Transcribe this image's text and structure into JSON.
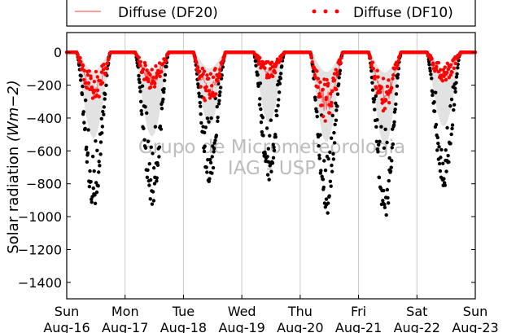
{
  "chart_data": {
    "type": "scatter",
    "title": "",
    "ylabel_text": "Solar radiation ",
    "ylabel_unit": "(Wm−2)",
    "xlabel": "",
    "ylim": [
      -1500,
      120
    ],
    "xlim": [
      0,
      7
    ],
    "yticks": [
      0,
      -200,
      -400,
      -600,
      -800,
      -1000,
      -1200,
      -1400
    ],
    "xticks": [
      {
        "day": "Sun",
        "date": "Aug-16",
        "x": 0
      },
      {
        "day": "Mon",
        "date": "Aug-17",
        "x": 1
      },
      {
        "day": "Tue",
        "date": "Aug-18",
        "x": 2
      },
      {
        "day": "Wed",
        "date": "Aug-19",
        "x": 3
      },
      {
        "day": "Thu",
        "date": "Aug-20",
        "x": 4
      },
      {
        "day": "Fri",
        "date": "Aug-21",
        "x": 5
      },
      {
        "day": "Sat",
        "date": "Aug-22",
        "x": 6
      },
      {
        "day": "Sun",
        "date": "Aug-23",
        "x": 7
      }
    ],
    "grid": "vertical",
    "legend": {
      "placement": "top",
      "entries": [
        {
          "label": "Diffuse (DF20)",
          "style": "line",
          "color": "#ff6060"
        },
        {
          "label": "Diffuse (DF10)",
          "style": "dots",
          "color": "#ff0000"
        }
      ]
    },
    "watermark": [
      "Grupo de Micrometeorologia",
      "IAG - USP"
    ],
    "series": [
      {
        "role": "global",
        "marker": "black-dots",
        "color": "#000000",
        "days": [
          {
            "x0": 0.17,
            "x1": 0.75,
            "min": -950,
            "center": 0.43
          },
          {
            "x0": 1.17,
            "x1": 1.75,
            "min": -930,
            "center": 1.47
          },
          {
            "x0": 2.17,
            "x1": 2.72,
            "min": -810,
            "center": 2.47
          },
          {
            "x0": 3.2,
            "x1": 3.73,
            "min": -780,
            "center": 3.5
          },
          {
            "x0": 4.17,
            "x1": 4.73,
            "min": -990,
            "center": 4.45
          },
          {
            "x0": 5.17,
            "x1": 5.73,
            "min": -1020,
            "center": 5.45
          },
          {
            "x0": 6.17,
            "x1": 6.75,
            "min": -820,
            "center": 6.5
          }
        ]
      },
      {
        "name": "Diffuse (DF10)",
        "marker": "red-dots",
        "color": "#ff0000",
        "days": [
          {
            "x0": 0.17,
            "x1": 0.75,
            "min": -320
          },
          {
            "x0": 1.17,
            "x1": 1.75,
            "min": -230
          },
          {
            "x0": 2.17,
            "x1": 2.72,
            "min": -340
          },
          {
            "x0": 3.2,
            "x1": 3.73,
            "min": -160
          },
          {
            "x0": 4.17,
            "x1": 4.73,
            "min": -430
          },
          {
            "x0": 5.17,
            "x1": 5.73,
            "min": -370
          },
          {
            "x0": 6.17,
            "x1": 6.75,
            "min": -180
          }
        ]
      }
    ]
  }
}
